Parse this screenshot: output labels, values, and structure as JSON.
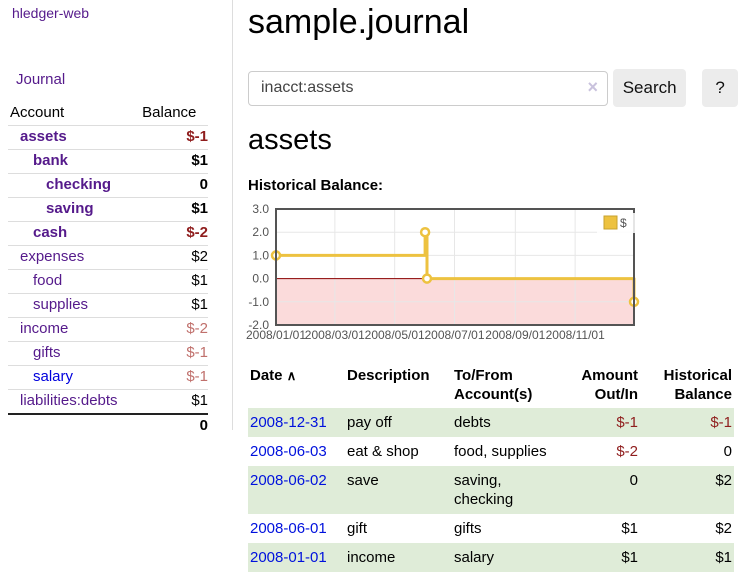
{
  "app": {
    "title": "hledger-web"
  },
  "colors": {
    "link_purple": "#551a8b",
    "link_blue": "#0000dd",
    "negative_strong": "#8f1d1d",
    "negative_faded": "#c0706c",
    "row_green": "#dfecd8",
    "series_gold": "#edc240"
  },
  "sidebar": {
    "journal_link": "Journal",
    "accounts": {
      "header_account": "Account",
      "header_balance": "Balance",
      "rows": [
        {
          "name": "assets",
          "balance": "$-1"
        },
        {
          "name": "bank",
          "balance": "$1"
        },
        {
          "name": "checking",
          "balance": "0"
        },
        {
          "name": "saving",
          "balance": "$1"
        },
        {
          "name": "cash",
          "balance": "$-2"
        },
        {
          "name": "expenses",
          "balance": "$2"
        },
        {
          "name": "food",
          "balance": "$1"
        },
        {
          "name": "supplies",
          "balance": "$1"
        },
        {
          "name": "income",
          "balance": "$-2"
        },
        {
          "name": "gifts",
          "balance": "$-1"
        },
        {
          "name": "salary",
          "balance": "$-1"
        },
        {
          "name": "liabilities:debts",
          "balance": "$1"
        }
      ],
      "total": "0"
    }
  },
  "main": {
    "title": "sample.journal",
    "search": {
      "value": "inacct:assets",
      "clear_icon": "×",
      "button_label": "Search",
      "help_label": "?"
    },
    "account_heading": "assets"
  },
  "chart_data": {
    "type": "line",
    "title": "Historical Balance:",
    "step": true,
    "legend_position": "top-right",
    "grid": true,
    "xlim": [
      "2008-01-01",
      "2008-12-31"
    ],
    "ylim": [
      -2,
      3
    ],
    "y_ticks": [
      "3.0",
      "2.0",
      "1.0",
      "0.0",
      "-1.0",
      "-2.0"
    ],
    "x_ticks": [
      "2008/01/01",
      "2008/03/01",
      "2008/05/01",
      "2008/07/01",
      "2008/09/01",
      "2008/11/01"
    ],
    "series": [
      {
        "name": "$",
        "color": "#edc240",
        "points": [
          [
            "2008-01-01",
            1
          ],
          [
            "2008-06-01",
            2
          ],
          [
            "2008-06-03",
            0
          ],
          [
            "2008-12-31",
            -1
          ]
        ]
      }
    ],
    "negative_fill": "#fbdbdb",
    "zero_line_color": "#8b0000"
  },
  "txns": {
    "headers": {
      "date": "Date",
      "sort_icon": "∧",
      "description": "Description",
      "accounts": "To/From Account(s)",
      "amount": "Amount Out/In",
      "balance": "Historical Balance"
    },
    "rows": [
      {
        "date": "2008-12-31",
        "description": "pay off",
        "accounts": "debts",
        "amount": "$-1",
        "balance": "$-1"
      },
      {
        "date": "2008-06-03",
        "description": "eat & shop",
        "accounts": "food, supplies",
        "amount": "$-2",
        "balance": "0"
      },
      {
        "date": "2008-06-02",
        "description": "save",
        "accounts": "saving, checking",
        "amount": "0",
        "balance": "$2"
      },
      {
        "date": "2008-06-01",
        "description": "gift",
        "accounts": "gifts",
        "amount": "$1",
        "balance": "$2"
      },
      {
        "date": "2008-01-01",
        "description": "income",
        "accounts": "salary",
        "amount": "$1",
        "balance": "$1"
      }
    ]
  }
}
